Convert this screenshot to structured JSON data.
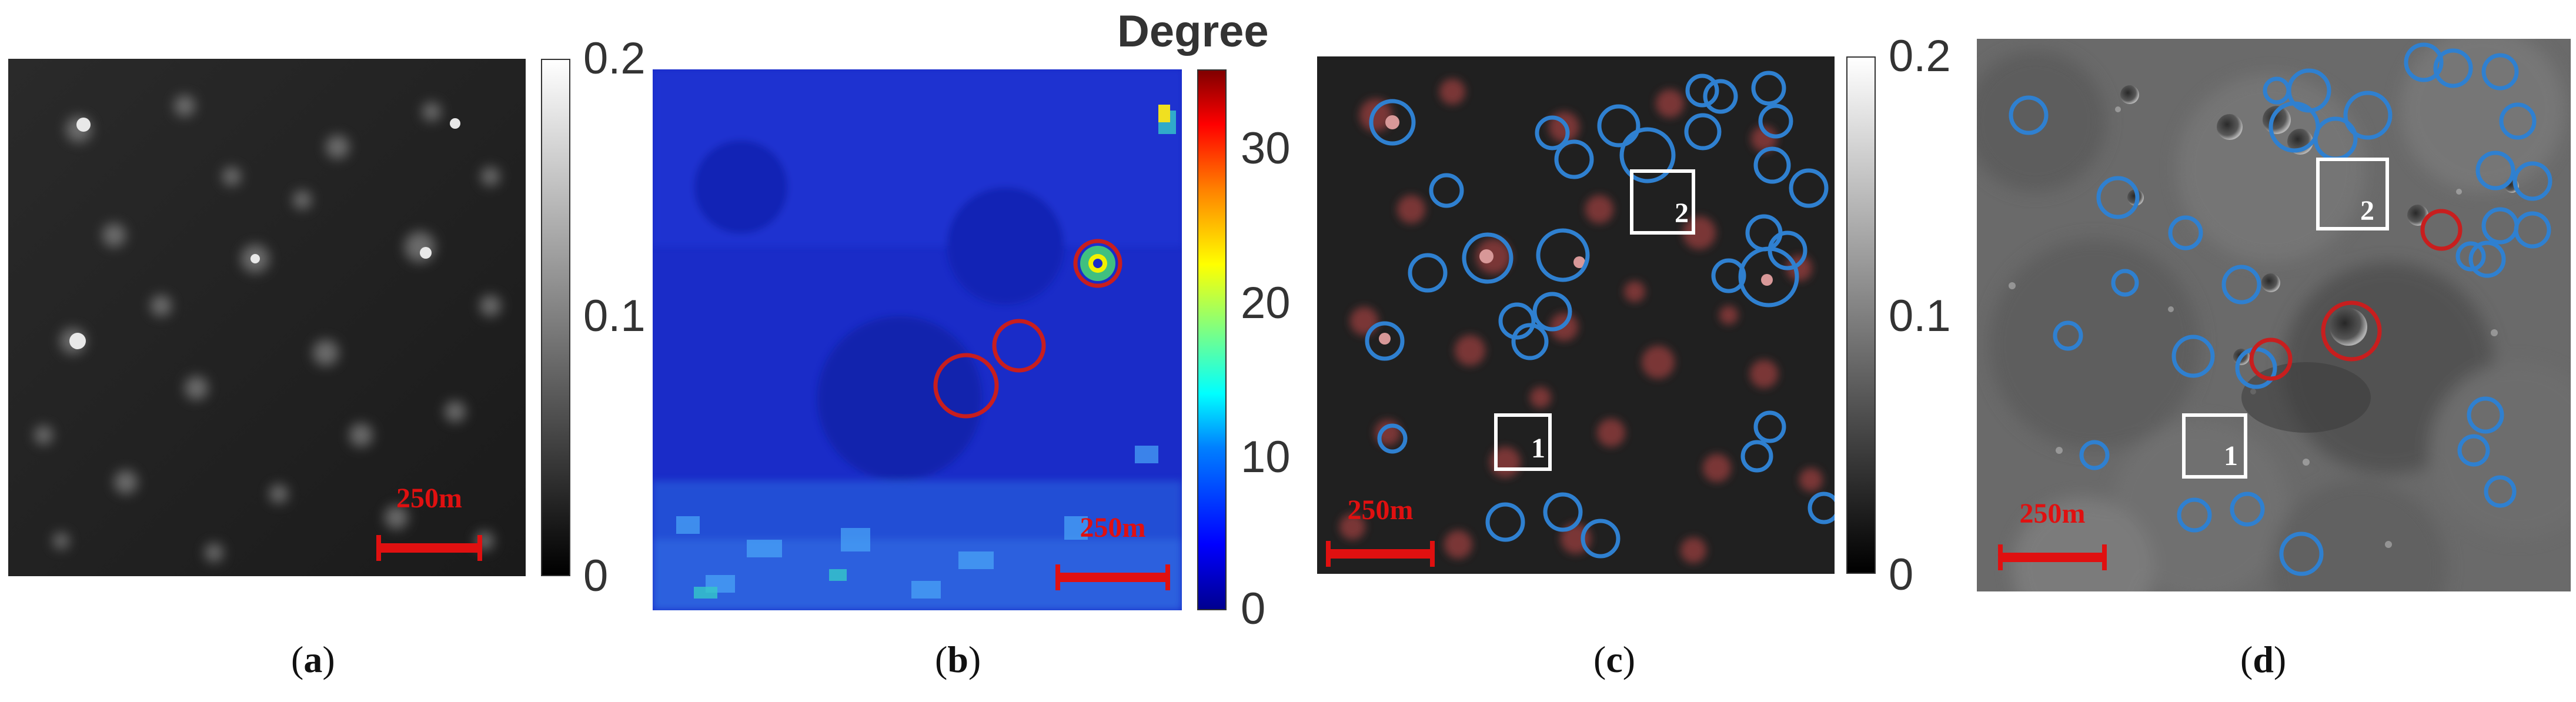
{
  "panels": [
    {
      "id": "a",
      "caption_letter": "a",
      "scale_label": "250m"
    },
    {
      "id": "b",
      "caption_letter": "b",
      "scale_label": "250m"
    },
    {
      "id": "c",
      "caption_letter": "c",
      "scale_label": "250m",
      "boxes": [
        "1",
        "2"
      ]
    },
    {
      "id": "d",
      "caption_letter": "d",
      "scale_label": "250m",
      "boxes": [
        "1",
        "2"
      ]
    }
  ],
  "colorbar_gray_1": {
    "ticks": [
      "0.2",
      "0.1",
      "0"
    ]
  },
  "colorbar_jet": {
    "title": "Degree",
    "ticks": [
      "30",
      "20",
      "10",
      "0"
    ]
  },
  "colorbar_gray_2": {
    "ticks": [
      "0.2",
      "0.1",
      "0"
    ]
  },
  "colors": {
    "scale_red": "#e01010",
    "circle_blue": "#2f80d0",
    "circle_red": "#c81e1e",
    "box_white": "#ffffff"
  }
}
